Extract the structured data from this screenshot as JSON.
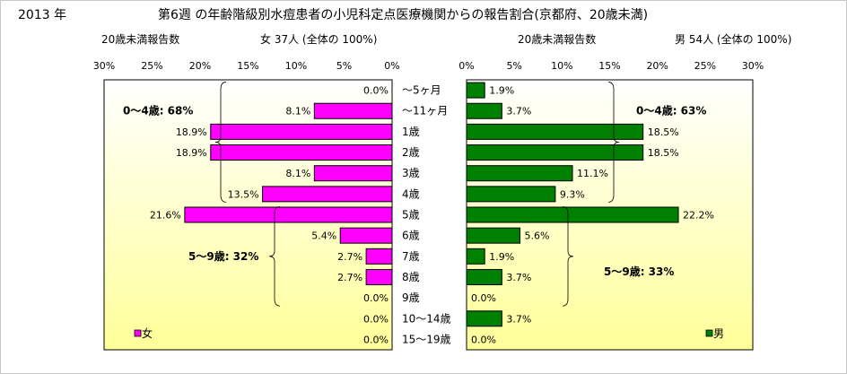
{
  "header": {
    "year": "2013 年",
    "title": "第6週 の年齢階級別水痘患者の小児科定点医療機関からの報告割合(京都府、20歳未満)",
    "left_caption": "20歳未満報告数",
    "left_stat": "女  37人 (全体の  100%)",
    "right_caption": "20歳未満報告数",
    "right_stat": "男  54人 (全体の  100%)"
  },
  "colors": {
    "female": "#ff00ff",
    "male": "#008000",
    "plot_gradient_top": "#ffffff",
    "plot_gradient_bottom": "#ffff99"
  },
  "chart_data": [
    {
      "type": "bar",
      "orientation": "horizontal",
      "direction": "reversed",
      "categories": [
        "～5ヶ月",
        "～11ヶ月",
        "1歳",
        "2歳",
        "3歳",
        "4歳",
        "5歳",
        "6歳",
        "7歳",
        "8歳",
        "9歳",
        "10～14歳",
        "15～19歳"
      ],
      "series": [
        {
          "name": "女",
          "values": [
            0.0,
            8.1,
            18.9,
            18.9,
            8.1,
            13.5,
            21.6,
            5.4,
            2.7,
            2.7,
            0.0,
            0.0,
            0.0
          ]
        }
      ],
      "data_labels": [
        "0.0%",
        "8.1%",
        "18.9%",
        "18.9%",
        "8.1%",
        "13.5%",
        "21.6%",
        "5.4%",
        "2.7%",
        "2.7%",
        "0.0%",
        "0.0%",
        "0.0%"
      ],
      "xlim": [
        0,
        30
      ],
      "ticks": [
        "30%",
        "25%",
        "20%",
        "15%",
        "10%",
        "5%",
        "0%"
      ],
      "annotations": [
        "0～4歳: 68%",
        "5～9歳: 32%"
      ],
      "legend": "bottom-left"
    },
    {
      "type": "bar",
      "orientation": "horizontal",
      "categories": [
        "～5ヶ月",
        "～11ヶ月",
        "1歳",
        "2歳",
        "3歳",
        "4歳",
        "5歳",
        "6歳",
        "7歳",
        "8歳",
        "9歳",
        "10～14歳",
        "15～19歳"
      ],
      "series": [
        {
          "name": "男",
          "values": [
            1.9,
            3.7,
            18.5,
            18.5,
            11.1,
            9.3,
            22.2,
            5.6,
            1.9,
            3.7,
            0.0,
            3.7,
            0.0
          ]
        }
      ],
      "data_labels": [
        "1.9%",
        "3.7%",
        "18.5%",
        "18.5%",
        "11.1%",
        "9.3%",
        "22.2%",
        "5.6%",
        "1.9%",
        "3.7%",
        "0.0%",
        "3.7%",
        "0.0%"
      ],
      "xlim": [
        0,
        30
      ],
      "ticks": [
        "0%",
        "5%",
        "10%",
        "15%",
        "20%",
        "25%",
        "30%"
      ],
      "annotations": [
        "0～4歳: 63%",
        "5～9歳: 33%"
      ],
      "legend": "bottom-right"
    }
  ]
}
